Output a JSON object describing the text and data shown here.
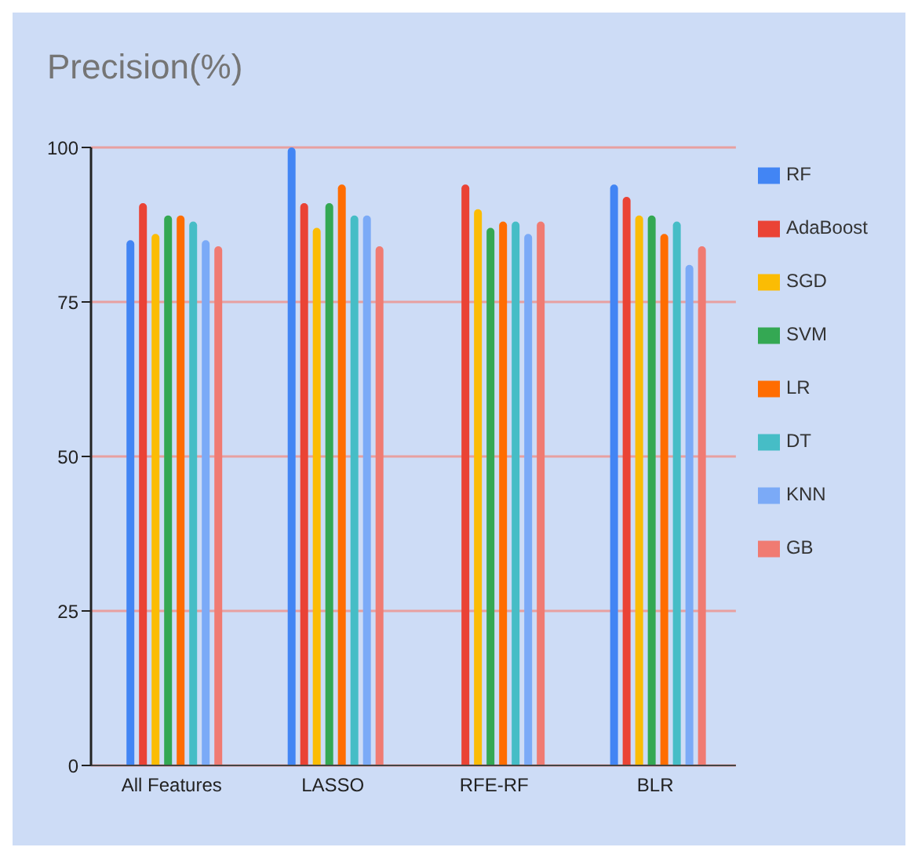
{
  "chart_data": {
    "type": "bar",
    "title": "Precision(%)",
    "categories": [
      "All Features",
      "LASSO",
      "RFE-RF",
      "BLR"
    ],
    "series": [
      {
        "name": "RF",
        "color": "#4285f4",
        "values": [
          85,
          100,
          null,
          94
        ]
      },
      {
        "name": "AdaBoost",
        "color": "#ea4335",
        "values": [
          91,
          91,
          94,
          92
        ]
      },
      {
        "name": "SGD",
        "color": "#fbbc04",
        "values": [
          86,
          87,
          90,
          89
        ]
      },
      {
        "name": "SVM",
        "color": "#34a853",
        "values": [
          89,
          91,
          87,
          89
        ]
      },
      {
        "name": "LR",
        "color": "#ff6d01",
        "values": [
          89,
          94,
          88,
          86
        ]
      },
      {
        "name": "DT",
        "color": "#46bdc6",
        "values": [
          88,
          89,
          88,
          88
        ]
      },
      {
        "name": "KNN",
        "color": "#7baaf7",
        "values": [
          85,
          89,
          86,
          81
        ]
      },
      {
        "name": "GB",
        "color": "#f07b72",
        "values": [
          84,
          84,
          88,
          84
        ]
      }
    ],
    "ylim": [
      0,
      100
    ],
    "yticks": [
      0,
      25,
      50,
      75,
      100
    ],
    "grid": "y",
    "legend": "right"
  }
}
